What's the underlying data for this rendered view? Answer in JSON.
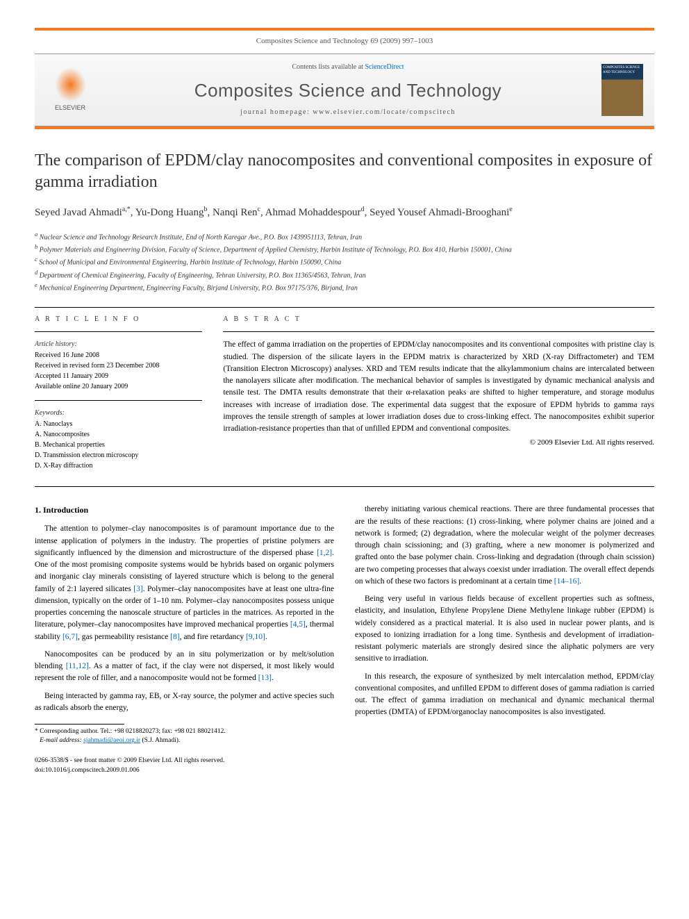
{
  "journal_ref": "Composites Science and Technology 69 (2009) 997–1003",
  "masthead": {
    "contents_prefix": "Contents lists available at ",
    "contents_link": "ScienceDirect",
    "journal_name": "Composites Science and Technology",
    "homepage_prefix": "journal homepage: ",
    "homepage_url": "www.elsevier.com/locate/compscitech",
    "publisher": "ELSEVIER",
    "cover_label": "COMPOSITES SCIENCE AND TECHNOLOGY"
  },
  "title": "The comparison of EPDM/clay nanocomposites and conventional composites in exposure of gamma irradiation",
  "authors_html": "Seyed Javad Ahmadi<sup>a,*</sup>, Yu-Dong Huang<sup>b</sup>, Nanqi Ren<sup>c</sup>, Ahmad Mohaddespour<sup>d</sup>, Seyed Yousef Ahmadi-Brooghani<sup>e</sup>",
  "affiliations": [
    "a Nuclear Science and Technology Research Institute, End of North Karegar Ave., P.O. Box 1439951113, Tehran, Iran",
    "b Polymer Materials and Engineering Division, Faculty of Science, Department of Applied Chemistry, Harbin Institute of Technology, P.O. Box 410, Harbin 150001, China",
    "c School of Municipal and Environmental Engineering, Harbin Institute of Technology, Harbin 150090, China",
    "d Department of Chemical Engineering, Faculty of Engineering, Tehran University, P.O. Box 11365/4563, Tehran, Iran",
    "e Mechanical Engineering Department, Engineering Faculty, Birjand University, P.O. Box 97175/376, Birjand, Iran"
  ],
  "article_info": {
    "heading": "A R T I C L E   I N F O",
    "history_heading": "Article history:",
    "history": [
      "Received 16 June 2008",
      "Received in revised form 23 December 2008",
      "Accepted 11 January 2009",
      "Available online 20 January 2009"
    ],
    "keywords_heading": "Keywords:",
    "keywords": [
      "A. Nanoclays",
      "A. Nanocomposites",
      "B. Mechanical properties",
      "D. Transmission electron microscopy",
      "D. X-Ray diffraction"
    ]
  },
  "abstract": {
    "heading": "A B S T R A C T",
    "text": "The effect of gamma irradiation on the properties of EPDM/clay nanocomposites and its conventional composites with pristine clay is studied. The dispersion of the silicate layers in the EPDM matrix is characterized by XRD (X-ray Diffractometer) and TEM (Transition Electron Microscopy) analyses. XRD and TEM results indicate that the alkylammonium chains are intercalated between the nanolayers silicate after modification. The mechanical behavior of samples is investigated by dynamic mechanical analysis and tensile test. The DMTA results demonstrate that their α-relaxation peaks are shifted to higher temperature, and storage modulus increases with increase of irradiation dose. The experimental data suggest that the exposure of EPDM hybrids to gamma rays improves the tensile strength of samples at lower irradiation doses due to cross-linking effect. The nanocomposites exhibit superior irradiation-resistance properties than that of unfilled EPDM and conventional composites.",
    "copyright": "© 2009 Elsevier Ltd. All rights reserved."
  },
  "section1_heading": "1. Introduction",
  "paragraphs_left": [
    "The attention to polymer–clay nanocomposites is of paramount importance due to the intense application of polymers in the industry. The properties of pristine polymers are significantly influenced by the dimension and microstructure of the dispersed phase [1,2]. One of the most promising composite systems would be hybrids based on organic polymers and inorganic clay minerals consisting of layered structure which is belong to the general family of 2:1 layered silicates [3]. Polymer–clay nanocomposites have at least one ultra-fine dimension, typically on the order of 1–10 nm. Polymer–clay nanocomposites possess unique properties concerning the nanoscale structure of particles in the matrices. As reported in the literature, polymer–clay nanocomposites have improved mechanical properties [4,5], thermal stability [6,7], gas permeability resistance [8], and fire retardancy [9,10].",
    "Nanocomposites can be produced by an in situ polymerization or by melt/solution blending [11,12]. As a matter of fact, if the clay were not dispersed, it most likely would represent the role of filler, and a nanocomposite would not be formed [13].",
    "Being interacted by gamma ray, EB, or X-ray source, the polymer and active species such as radicals absorb the energy,"
  ],
  "paragraphs_right": [
    "thereby initiating various chemical reactions. There are three fundamental processes that are the results of these reactions: (1) cross-linking, where polymer chains are joined and a network is formed; (2) degradation, where the molecular weight of the polymer decreases through chain scissioning; and (3) grafting, where a new monomer is polymerized and grafted onto the base polymer chain. Cross-linking and degradation (through chain scission) are two competing processes that always coexist under irradiation. The overall effect depends on which of these two factors is predominant at a certain time [14–16].",
    "Being very useful in various fields because of excellent properties such as softness, elasticity, and insulation, Ethylene Propylene Diene Methylene linkage rubber (EPDM) is widely considered as a practical material. It is also used in nuclear power plants, and is exposed to ionizing irradiation for a long time. Synthesis and development of irradiation-resistant polymeric materials are strongly desired since the aliphatic polymers are very sensitive to irradiation.",
    "In this research, the exposure of synthesized by melt intercalation method, EPDM/clay conventional composites, and unfilled EPDM to different doses of gamma radiation is carried out. The effect of gamma irradiation on mechanical and dynamic mechanical thermal properties (DMTA) of EPDM/organoclay nanocomposites is also investigated."
  ],
  "footnote": {
    "corresponding": "* Corresponding author. Tel.: +98 0218820273; fax: +98 021 88021412.",
    "email_label": "E-mail address:",
    "email": "sjahmadi@aeoi.org.ir",
    "email_person": "(S.J. Ahmadi)."
  },
  "doi": {
    "line1": "0266-3538/$ - see front matter © 2009 Elsevier Ltd. All rights reserved.",
    "line2": "doi:10.1016/j.compscitech.2009.01.006"
  },
  "colors": {
    "accent": "#f47920",
    "link": "#0066cc",
    "gray": "#555555"
  }
}
